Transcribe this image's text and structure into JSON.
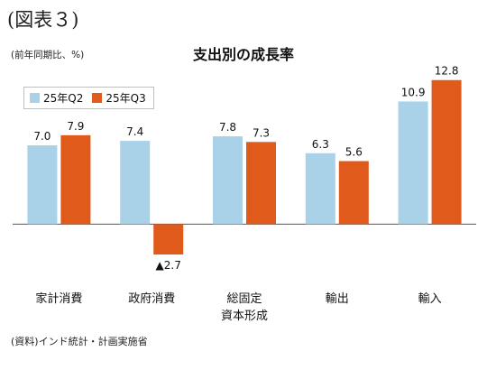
{
  "figure_label": "(図表３)",
  "unit_label": "(前年同期比、%)",
  "source": "(資料)インド統計・計画実施省",
  "colors": {
    "q2": "#a9d2e8",
    "q3": "#e05a1b",
    "axis": "#555555"
  },
  "chart_data": {
    "type": "bar",
    "title": "支出別の成長率",
    "xlabel": "",
    "ylabel": "",
    "categories": [
      "家計消費",
      "政府消費",
      "総固定\n資本形成",
      "輸出",
      "輸入"
    ],
    "series": [
      {
        "name": "25年Q2",
        "values": [
          7.0,
          7.4,
          7.8,
          6.3,
          10.9
        ]
      },
      {
        "name": "25年Q3",
        "values": [
          7.9,
          -2.7,
          7.3,
          5.6,
          12.8
        ]
      }
    ],
    "value_labels": [
      [
        "7.0",
        "7.4",
        "7.8",
        "6.3",
        "10.9"
      ],
      [
        "7.9",
        "▲2.7",
        "7.3",
        "5.6",
        "12.8"
      ]
    ],
    "ylim": [
      -3.5,
      13.5
    ],
    "grid": false,
    "legend_position": "top-left"
  }
}
